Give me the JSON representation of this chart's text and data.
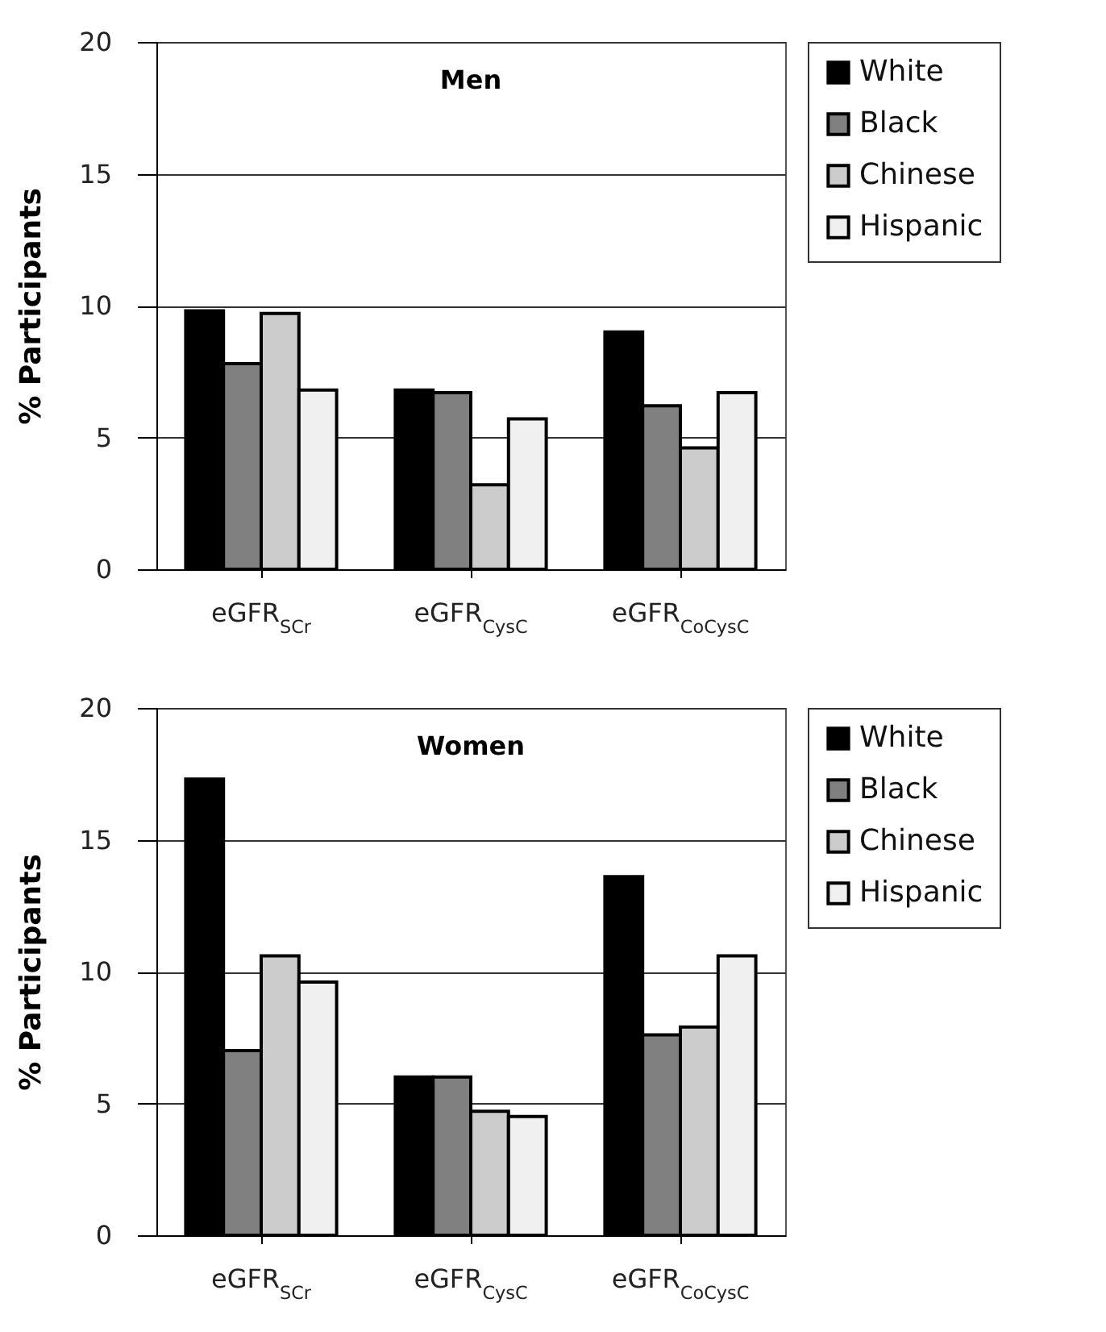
{
  "chart_data": [
    {
      "type": "bar",
      "title": "Men",
      "ylabel": "% Participants",
      "categories": [
        "eGFR$_{SCr}$",
        "eGFR$_{CysC}$",
        "eGFR$_{CoCysC}$"
      ],
      "series": [
        {
          "name": "White",
          "color": "#000000",
          "values": [
            9.8,
            6.8,
            9.0
          ]
        },
        {
          "name": "Black",
          "color": "#808080",
          "values": [
            7.8,
            6.7,
            6.2
          ]
        },
        {
          "name": "Chinese",
          "color": "#cccccc",
          "values": [
            9.7,
            3.2,
            4.6
          ]
        },
        {
          "name": "Hispanic",
          "color": "#f0f0f0",
          "values": [
            6.8,
            5.7,
            6.7
          ]
        }
      ],
      "ylim": [
        0,
        20
      ],
      "yticks": [
        0,
        5,
        10,
        15,
        20
      ],
      "grid": "y",
      "legend": "right"
    },
    {
      "type": "bar",
      "title": "Women",
      "ylabel": "% Participants",
      "categories": [
        "eGFR$_{SCr}$",
        "eGFR$_{CysC}$",
        "eGFR$_{CoCysC}$"
      ],
      "series": [
        {
          "name": "White",
          "color": "#000000",
          "values": [
            17.3,
            6.0,
            13.6
          ]
        },
        {
          "name": "Black",
          "color": "#808080",
          "values": [
            7.0,
            6.0,
            7.6
          ]
        },
        {
          "name": "Chinese",
          "color": "#cccccc",
          "values": [
            10.6,
            4.7,
            7.9
          ]
        },
        {
          "name": "Hispanic",
          "color": "#f0f0f0",
          "values": [
            9.6,
            4.5,
            10.6
          ]
        }
      ],
      "ylim": [
        0,
        20
      ],
      "yticks": [
        0,
        5,
        10,
        15,
        20
      ],
      "grid": "y",
      "legend": "right"
    }
  ]
}
